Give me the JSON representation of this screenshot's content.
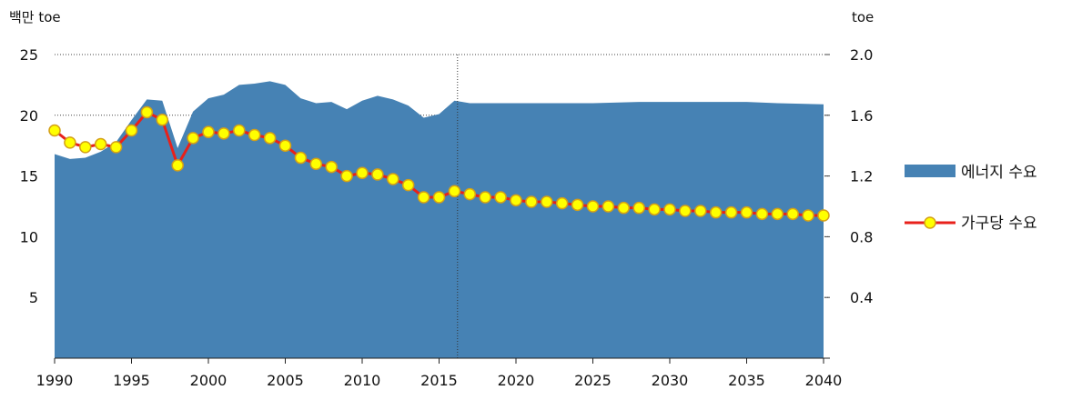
{
  "chart_data": {
    "type": "area+line",
    "title": "",
    "left_axis": {
      "unit_label": "백만 toe",
      "ticks": [
        5,
        10,
        15,
        20,
        25
      ],
      "ylim": [
        0,
        25
      ]
    },
    "right_axis": {
      "unit_label": "toe",
      "ticks": [
        "0.4",
        "0.8",
        "1.2",
        "1.6",
        "2.0"
      ],
      "ylim": [
        0,
        2.0
      ]
    },
    "x_ticks": [
      1990,
      1995,
      2000,
      2005,
      2010,
      2015,
      2020,
      2025,
      2030,
      2035,
      2040
    ],
    "xlim": [
      1990,
      2040
    ],
    "projection_start": 2016.2,
    "series": [
      {
        "name": "에너지 수요",
        "kind": "area",
        "axis": "left",
        "color": "#4682b4",
        "x": [
          1990,
          1991,
          1992,
          1993,
          1994,
          1995,
          1996,
          1997,
          1998,
          1999,
          2000,
          2001,
          2002,
          2003,
          2004,
          2005,
          2006,
          2007,
          2008,
          2009,
          2010,
          2011,
          2012,
          2013,
          2014,
          2015,
          2016,
          2017,
          2018,
          2019,
          2020,
          2022,
          2025,
          2028,
          2030,
          2032,
          2035,
          2037,
          2040
        ],
        "values": [
          16.8,
          16.4,
          16.5,
          17.0,
          17.8,
          19.6,
          21.3,
          21.2,
          17.3,
          20.3,
          21.4,
          21.7,
          22.5,
          22.6,
          22.8,
          22.5,
          21.4,
          21.0,
          21.1,
          20.5,
          21.2,
          21.6,
          21.3,
          20.8,
          19.8,
          20.1,
          21.2,
          21.0,
          21.0,
          21.0,
          21.0,
          21.0,
          21.0,
          21.1,
          21.1,
          21.1,
          21.1,
          21.0,
          20.9
        ]
      },
      {
        "name": "가구당 수요",
        "kind": "line",
        "axis": "right",
        "color": "#e8211b",
        "marker_fill": "#ffff00",
        "marker_stroke": "#d4a017",
        "x": [
          1990,
          1991,
          1992,
          1993,
          1994,
          1995,
          1996,
          1997,
          1998,
          1999,
          2000,
          2001,
          2002,
          2003,
          2004,
          2005,
          2006,
          2007,
          2008,
          2009,
          2010,
          2011,
          2012,
          2013,
          2014,
          2015,
          2016,
          2017,
          2018,
          2019,
          2020,
          2021,
          2022,
          2023,
          2024,
          2025,
          2026,
          2027,
          2028,
          2029,
          2030,
          2031,
          2032,
          2033,
          2034,
          2035,
          2036,
          2037,
          2038,
          2039,
          2040
        ],
        "values": [
          1.5,
          1.42,
          1.39,
          1.41,
          1.39,
          1.5,
          1.62,
          1.57,
          1.27,
          1.45,
          1.49,
          1.48,
          1.5,
          1.47,
          1.45,
          1.4,
          1.32,
          1.28,
          1.26,
          1.2,
          1.22,
          1.21,
          1.18,
          1.14,
          1.06,
          1.06,
          1.1,
          1.08,
          1.06,
          1.06,
          1.04,
          1.03,
          1.03,
          1.02,
          1.01,
          1.0,
          1.0,
          0.99,
          0.99,
          0.98,
          0.98,
          0.97,
          0.97,
          0.96,
          0.96,
          0.96,
          0.95,
          0.95,
          0.95,
          0.94,
          0.94
        ]
      }
    ],
    "legend": {
      "placement": "right"
    }
  }
}
